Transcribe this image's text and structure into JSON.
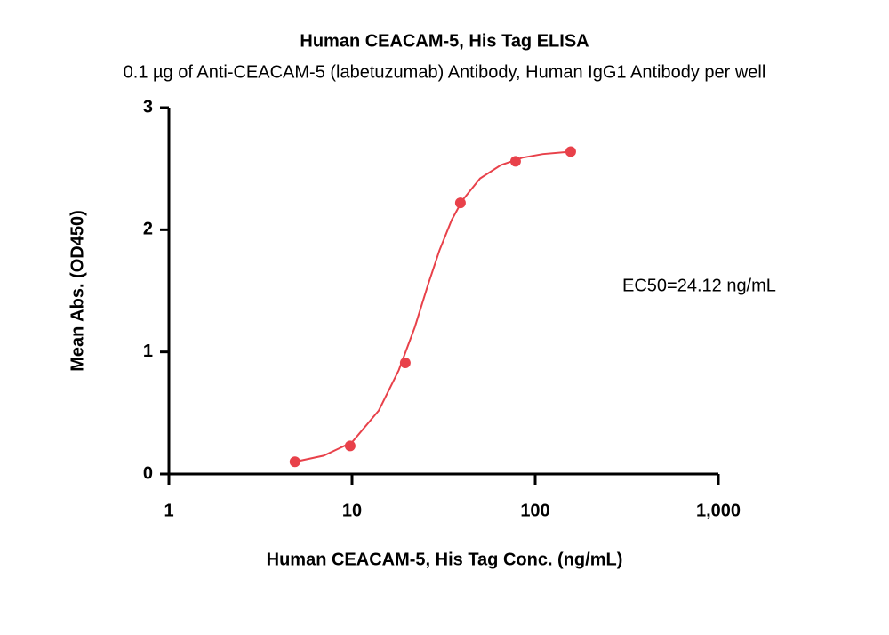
{
  "chart_data": {
    "type": "scatter",
    "title": "Human CEACAM-5, His Tag ELISA",
    "subtitle": "0.1 µg of Anti-CEACAM-5 (labetuzumab) Antibody, Human IgG1 Antibody per well",
    "x_label": "Human CEACAM-5, His Tag Conc. (ng/mL)",
    "y_label": "Mean Abs. (OD450)",
    "annotation": "EC50=24.12 ng/mL",
    "color": "#e8414a",
    "x": [
      4.88,
      9.77,
      19.53,
      39.06,
      78.13,
      156.25
    ],
    "values": [
      0.1,
      0.23,
      0.91,
      2.22,
      2.56,
      2.64
    ],
    "curve": {
      "x": [
        4.88,
        7,
        10,
        14,
        18,
        22,
        26,
        30,
        35,
        40,
        50,
        65,
        85,
        110,
        156.25
      ],
      "values": [
        0.1,
        0.15,
        0.26,
        0.52,
        0.85,
        1.2,
        1.55,
        1.83,
        2.08,
        2.24,
        2.42,
        2.53,
        2.59,
        2.62,
        2.64
      ]
    },
    "xscale": "log",
    "xlim": [
      1,
      1000
    ],
    "xticks": [
      1,
      10,
      100,
      {
        "value": 1000,
        "label": "1,000"
      }
    ],
    "ylim": [
      0,
      3
    ],
    "yticks": [
      0,
      1,
      2,
      3
    ]
  }
}
